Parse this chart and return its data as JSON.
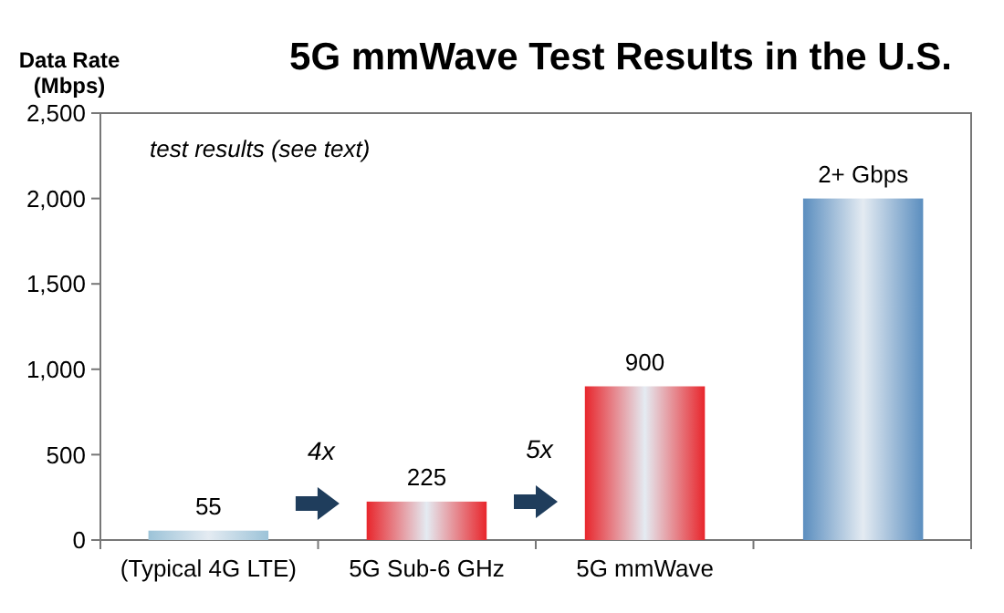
{
  "chart_data": {
    "type": "bar",
    "title": "5G mmWave Test Results in the U.S.",
    "ylabel": "Data Rate (Mbps)",
    "categories": [
      "(Typical 4G LTE)",
      "5G Sub-6 GHz",
      "5G mmWave",
      null
    ],
    "values": [
      55,
      225,
      900,
      2000
    ],
    "value_labels": [
      "55",
      "225",
      "900",
      "2+ Gbps"
    ],
    "colors": [
      "#9cc3d8",
      "#e8262c",
      "#e8262c",
      "#5b8ebf"
    ],
    "ylim": [
      0,
      2500
    ],
    "yticks": [
      0,
      {
        "value": 500,
        "label": "500"
      },
      {
        "value": 1000,
        "label": "1,000"
      },
      {
        "value": 1500,
        "label": "1,500"
      },
      {
        "value": 2000,
        "label": "2,000"
      },
      {
        "value": 2500,
        "label": "2,500"
      }
    ],
    "annotations": [
      "test results (see text)",
      "4x",
      "5x"
    ],
    "grid": false
  }
}
